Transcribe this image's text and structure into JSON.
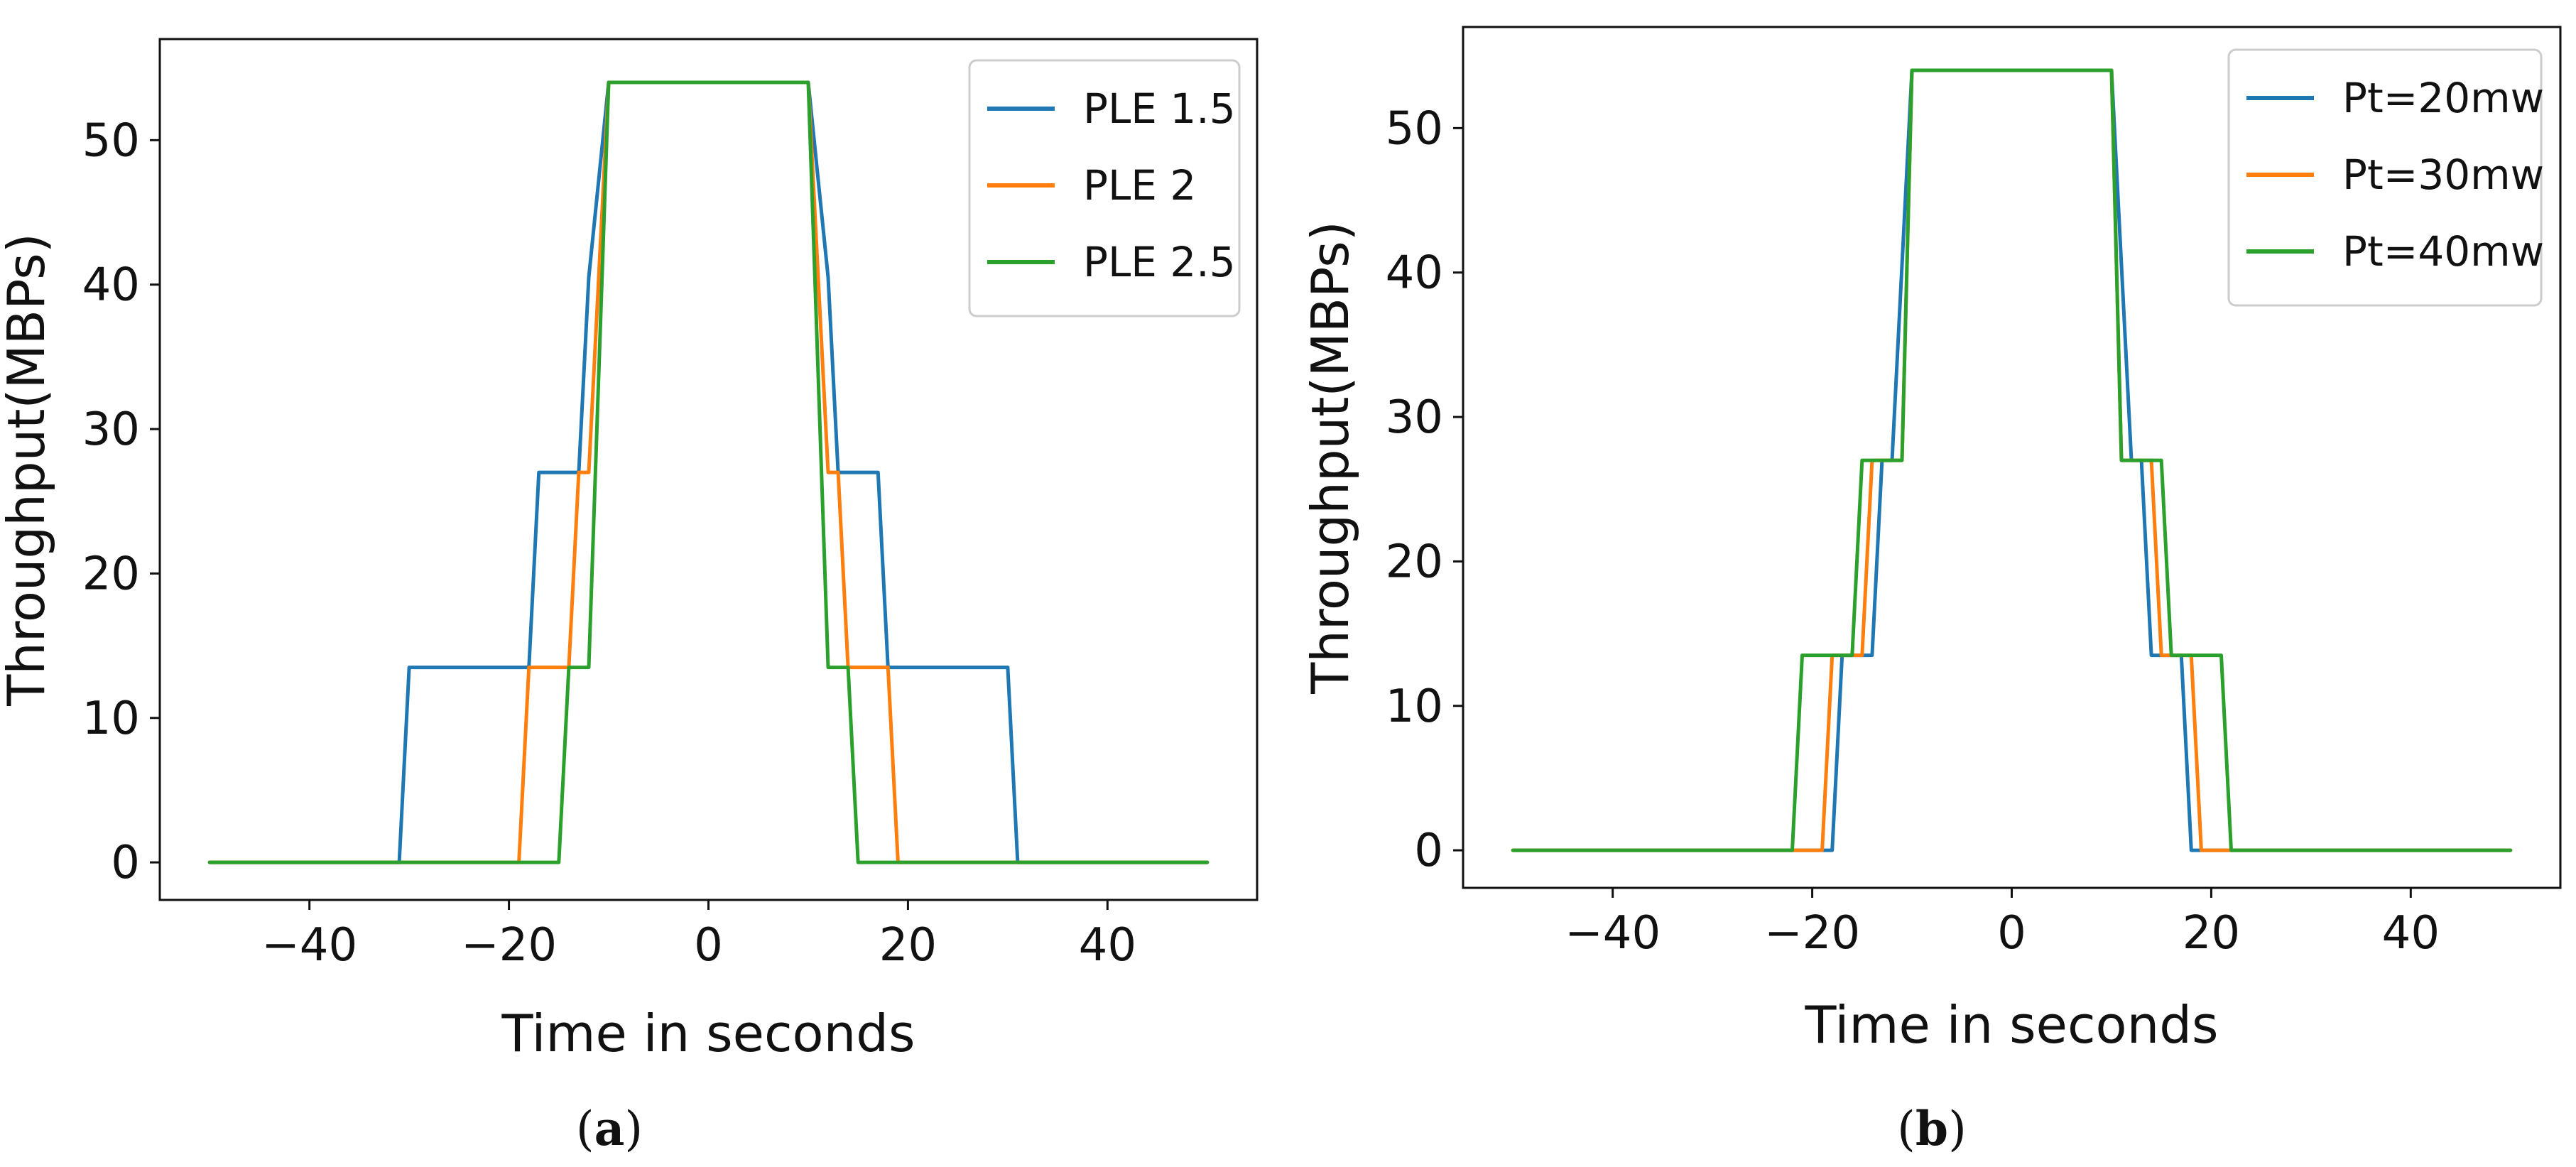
{
  "chart_data": [
    {
      "type": "line",
      "title": "",
      "caption": "a",
      "xlabel": "Time in seconds",
      "ylabel": "Throughput(MBPs)",
      "xlim": [
        -55,
        55
      ],
      "ylim": [
        -2.6,
        57
      ],
      "xticks": [
        -40,
        -20,
        0,
        20,
        40
      ],
      "xtick_labels": [
        "−40",
        "−20",
        "0",
        "20",
        "40"
      ],
      "yticks": [
        0,
        10,
        20,
        30,
        40,
        50
      ],
      "ytick_labels": [
        "0",
        "10",
        "20",
        "30",
        "40",
        "50"
      ],
      "legend_position": "top-right",
      "series": [
        {
          "name": "PLE 1.5",
          "color": "#1f77b4",
          "x": [
            -50,
            -31,
            -30,
            -18,
            -17,
            -13,
            -12,
            -10,
            10,
            12,
            13,
            17,
            18,
            30,
            31,
            50
          ],
          "y": [
            0,
            0,
            13.5,
            13.5,
            27,
            27,
            40.5,
            54,
            54,
            40.5,
            27,
            27,
            13.5,
            13.5,
            0,
            0
          ]
        },
        {
          "name": "PLE 2",
          "color": "#ff7f0e",
          "x": [
            -50,
            -19,
            -18,
            -14,
            -13,
            -12,
            -11,
            -10,
            10,
            11,
            12,
            13,
            14,
            18,
            19,
            50
          ],
          "y": [
            0,
            0,
            13.5,
            13.5,
            27,
            27,
            40.5,
            54,
            54,
            40.5,
            27,
            27,
            13.5,
            13.5,
            0,
            0
          ]
        },
        {
          "name": "PLE 2.5",
          "color": "#2ca02c",
          "x": [
            -50,
            -15,
            -14,
            -12,
            -10,
            10,
            12,
            14,
            15,
            50
          ],
          "y": [
            0,
            0,
            13.5,
            13.5,
            54,
            54,
            13.5,
            13.5,
            0,
            0
          ]
        }
      ]
    },
    {
      "type": "line",
      "title": "",
      "caption": "b",
      "xlabel": "Time in seconds",
      "ylabel": "Throughput(MBPs)",
      "xlim": [
        -55,
        55
      ],
      "ylim": [
        -2.6,
        57
      ],
      "xticks": [
        -40,
        -20,
        0,
        20,
        40
      ],
      "xtick_labels": [
        "−40",
        "−20",
        "0",
        "20",
        "40"
      ],
      "yticks": [
        0,
        10,
        20,
        30,
        40,
        50
      ],
      "ytick_labels": [
        "0",
        "10",
        "20",
        "30",
        "40",
        "50"
      ],
      "legend_position": "top-right",
      "series": [
        {
          "name": "Pt=20mw",
          "color": "#1f77b4",
          "x": [
            -50,
            -18,
            -17,
            -14,
            -13,
            -12,
            -11,
            -10,
            10,
            11,
            12,
            13,
            14,
            17,
            18,
            50
          ],
          "y": [
            0,
            0,
            13.5,
            13.5,
            27,
            27,
            40.5,
            54,
            54,
            40.5,
            27,
            27,
            13.5,
            13.5,
            0,
            0
          ]
        },
        {
          "name": "Pt=30mw",
          "color": "#ff7f0e",
          "x": [
            -50,
            -19,
            -18,
            -15,
            -14,
            -11,
            -10,
            10,
            11,
            14,
            15,
            18,
            19,
            50
          ],
          "y": [
            0,
            0,
            13.5,
            13.5,
            27,
            27,
            54,
            54,
            27,
            27,
            13.5,
            13.5,
            0,
            0
          ]
        },
        {
          "name": "Pt=40mw",
          "color": "#2ca02c",
          "x": [
            -50,
            -22,
            -21,
            -16,
            -15,
            -11,
            -10,
            10,
            11,
            15,
            16,
            21,
            22,
            50
          ],
          "y": [
            0,
            0,
            13.5,
            13.5,
            27,
            27,
            54,
            54,
            27,
            27,
            13.5,
            13.5,
            0,
            0
          ]
        }
      ]
    }
  ]
}
